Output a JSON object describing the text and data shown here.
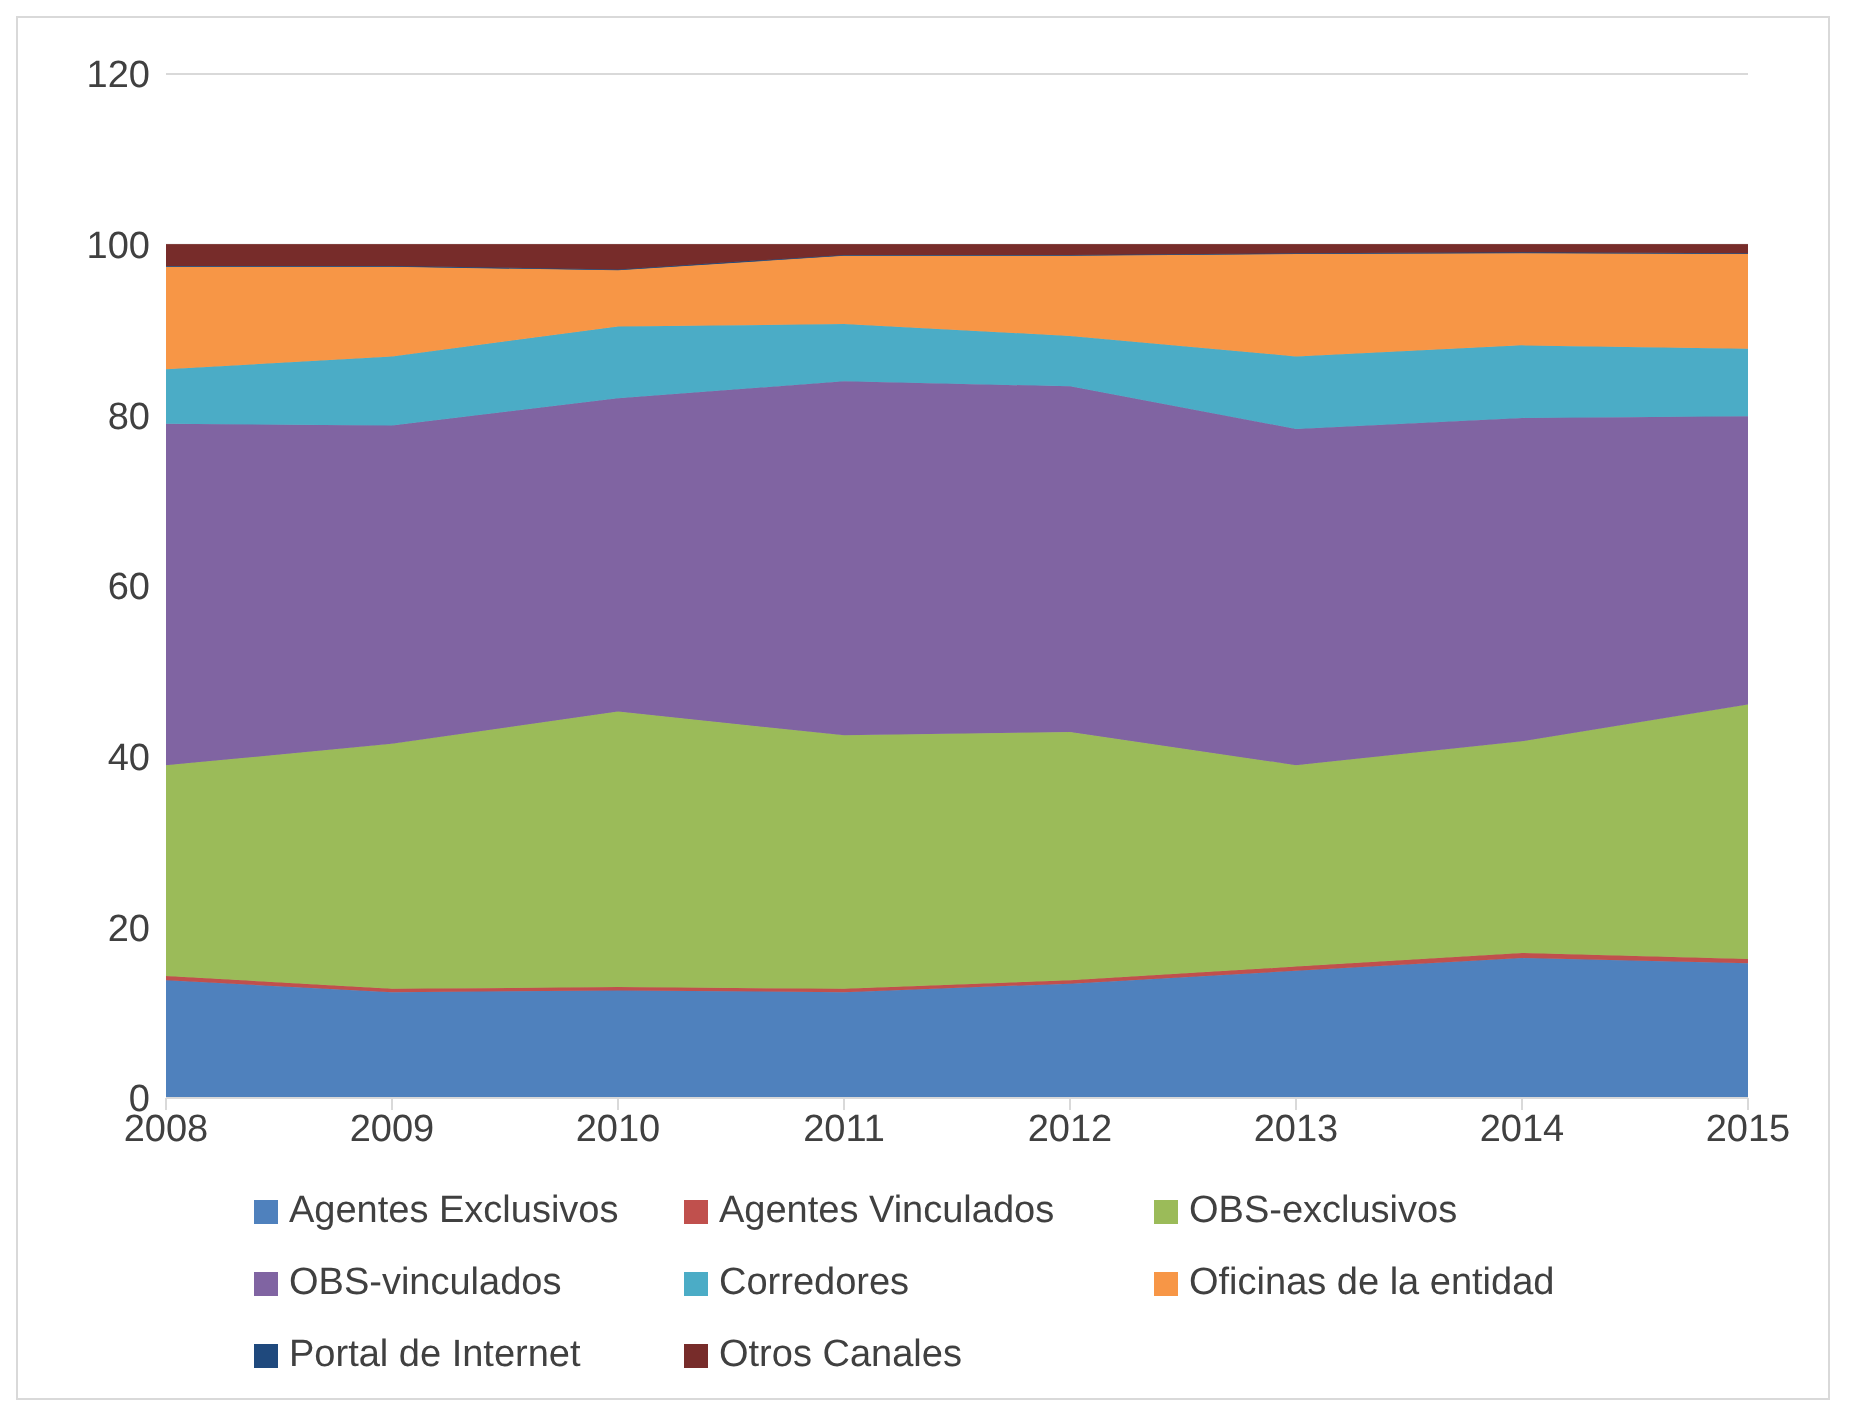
{
  "chart_data": {
    "type": "area",
    "stacked": true,
    "x": [
      2008,
      2009,
      2010,
      2011,
      2012,
      2013,
      2014,
      2015
    ],
    "xlim": [
      2008,
      2015
    ],
    "xticks": [
      2008,
      2009,
      2010,
      2011,
      2012,
      2013,
      2014,
      2015
    ],
    "ylim": [
      0,
      120
    ],
    "yticks": [
      0,
      20,
      40,
      60,
      80,
      100,
      120
    ],
    "grid": "y",
    "legend": "bottom",
    "series": [
      {
        "name": "Agentes Exclusivos",
        "color": "#4f81bd",
        "values": [
          13.8,
          12.4,
          12.6,
          12.4,
          13.4,
          14.9,
          16.4,
          15.8
        ]
      },
      {
        "name": "Agentes Vinculados",
        "color": "#c0504d",
        "values": [
          0.5,
          0.4,
          0.4,
          0.4,
          0.4,
          0.5,
          0.6,
          0.5
        ]
      },
      {
        "name": "OBS-exclusivos",
        "color": "#9bbb59",
        "values": [
          24.7,
          28.7,
          32.3,
          29.7,
          29.1,
          23.6,
          24.8,
          29.8
        ]
      },
      {
        "name": "OBS-vinculados",
        "color": "#8064a2",
        "values": [
          40.0,
          37.3,
          36.7,
          41.5,
          40.5,
          39.4,
          37.9,
          33.8
        ]
      },
      {
        "name": "Corredores",
        "color": "#4bacc6",
        "values": [
          6.4,
          8.1,
          8.4,
          6.7,
          5.9,
          8.5,
          8.5,
          7.9
        ]
      },
      {
        "name": "Oficinas de la entidad",
        "color": "#f79646",
        "values": [
          12.0,
          10.5,
          6.6,
          8.0,
          9.4,
          12.0,
          10.8,
          11.1
        ]
      },
      {
        "name": "Portal de Internet",
        "color": "#1f497d",
        "values": [
          0.1,
          0.1,
          0.1,
          0.1,
          0.1,
          0.1,
          0.1,
          0.1
        ]
      },
      {
        "name": "Otros Canales",
        "color": "#772c2a",
        "values": [
          2.5,
          2.5,
          2.9,
          1.2,
          1.2,
          1.0,
          0.9,
          1.0
        ]
      }
    ]
  }
}
